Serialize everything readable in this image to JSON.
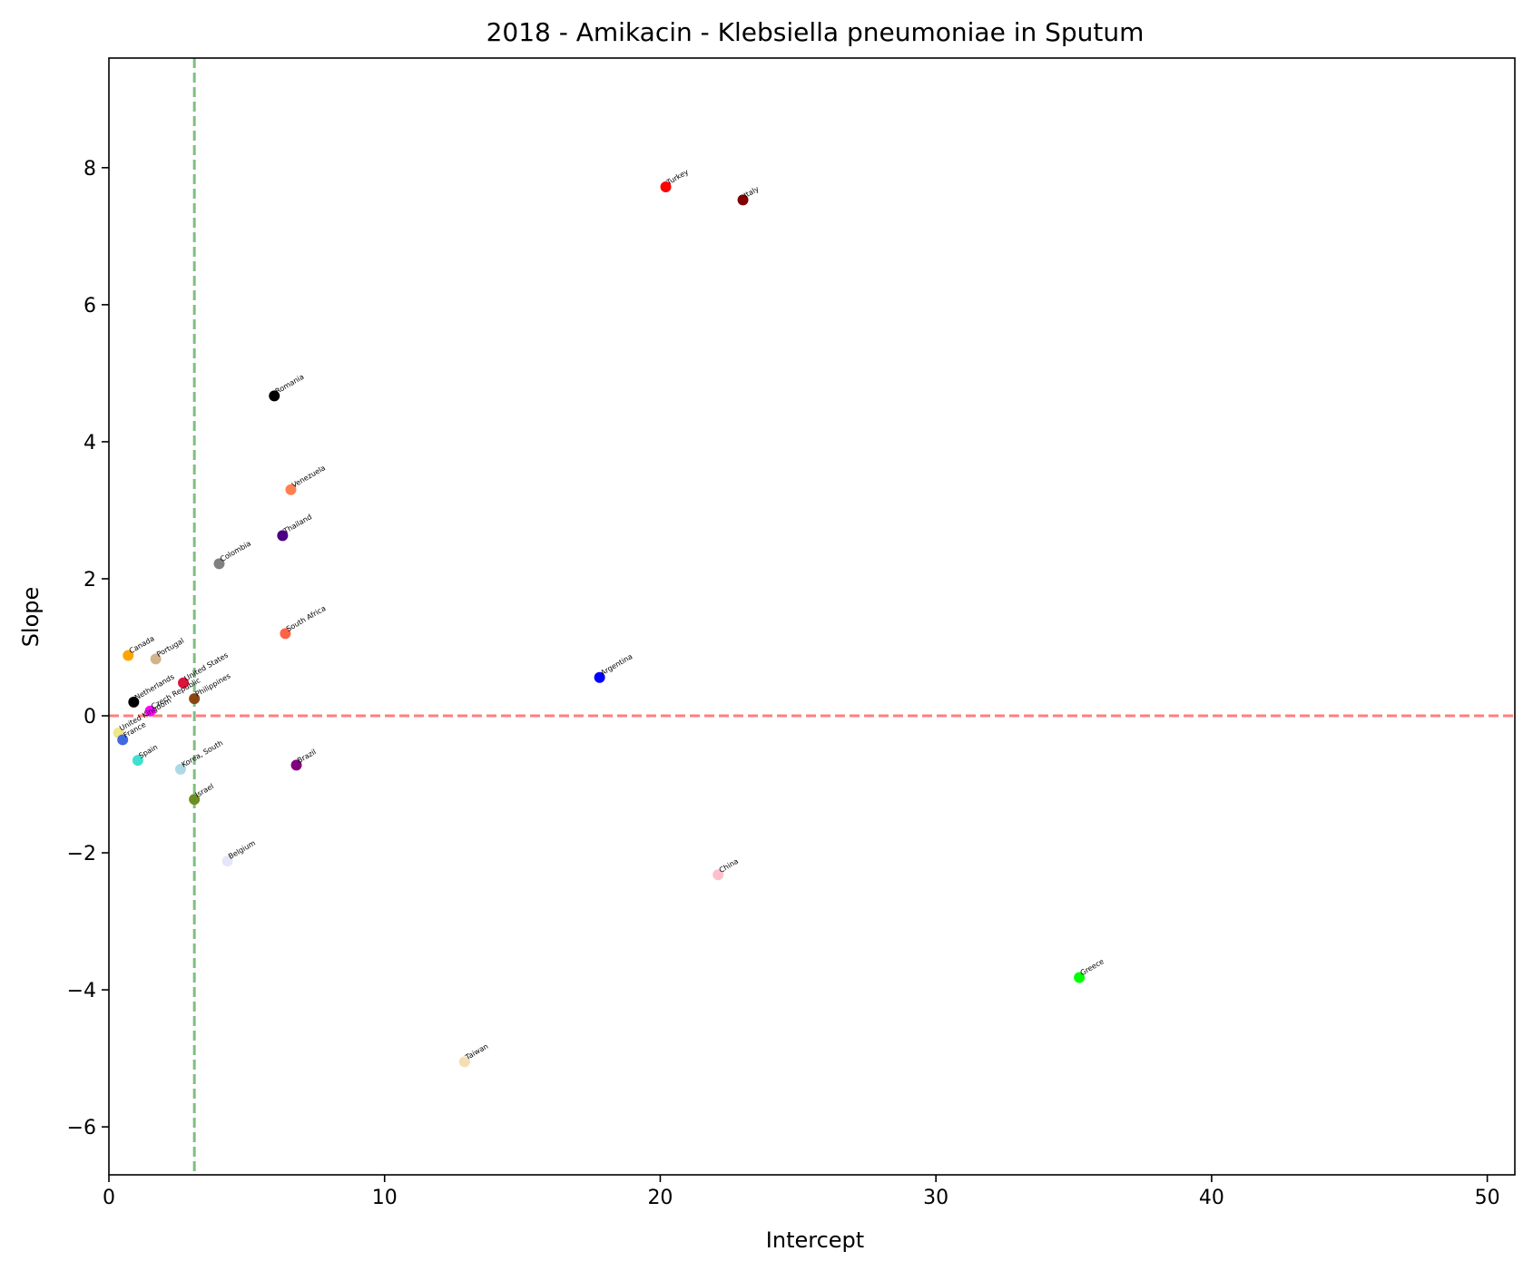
{
  "chart_data": {
    "type": "scatter",
    "title": "2018 - Amikacin - Klebsiella pneumoniae in Sputum",
    "xlabel": "Intercept",
    "ylabel": "Slope",
    "xlim": [
      0,
      51
    ],
    "ylim": [
      -6.7,
      9.6
    ],
    "xticks": [
      0,
      10,
      20,
      30,
      40,
      50
    ],
    "yticks": [
      -6,
      -4,
      -2,
      0,
      2,
      4,
      6,
      8
    ],
    "xtick_labels": [
      "0",
      "10",
      "20",
      "30",
      "40",
      "50"
    ],
    "ytick_labels": [
      "−6",
      "−4",
      "−2",
      "0",
      "2",
      "4",
      "6",
      "8"
    ],
    "grid": false,
    "reference_lines": [
      {
        "orientation": "horizontal",
        "value": 0,
        "color": "#ff0000",
        "style": "dashed",
        "opacity": 0.5
      },
      {
        "orientation": "vertical",
        "value": 3.1,
        "color": "#008000",
        "style": "dashed",
        "opacity": 0.5
      }
    ],
    "points": [
      {
        "label": "Turkey",
        "x": 20.2,
        "y": 7.72,
        "color": "#ff0000"
      },
      {
        "label": "Italy",
        "x": 23.0,
        "y": 7.53,
        "color": "#800000"
      },
      {
        "label": "Romania",
        "x": 6.0,
        "y": 4.67,
        "color": "#000000"
      },
      {
        "label": "Venezuela",
        "x": 6.6,
        "y": 3.3,
        "color": "#ff7f50"
      },
      {
        "label": "Thailand",
        "x": 6.3,
        "y": 2.63,
        "color": "#4b0082"
      },
      {
        "label": "Colombia",
        "x": 4.0,
        "y": 2.22,
        "color": "#808080"
      },
      {
        "label": "South Africa",
        "x": 6.4,
        "y": 1.2,
        "color": "#ff6347"
      },
      {
        "label": "Canada",
        "x": 0.7,
        "y": 0.88,
        "color": "#ffa500"
      },
      {
        "label": "Portugal",
        "x": 1.7,
        "y": 0.83,
        "color": "#d2b48c"
      },
      {
        "label": "United States",
        "x": 2.7,
        "y": 0.48,
        "color": "#dc143c"
      },
      {
        "label": "Philippines",
        "x": 3.1,
        "y": 0.25,
        "color": "#8b4513"
      },
      {
        "label": "Argentina",
        "x": 17.8,
        "y": 0.56,
        "color": "#0000ff"
      },
      {
        "label": "Czech Republic",
        "x": 1.5,
        "y": 0.07,
        "color": "#ff00ff"
      },
      {
        "label": "Netherlands",
        "x": 0.9,
        "y": 0.2,
        "color": "#000000"
      },
      {
        "label": "United Kingdom",
        "x": 0.35,
        "y": -0.25,
        "color": "#f0e68c"
      },
      {
        "label": "France",
        "x": 0.5,
        "y": -0.35,
        "color": "#4169e1"
      },
      {
        "label": "Spain",
        "x": 1.05,
        "y": -0.65,
        "color": "#40e0d0"
      },
      {
        "label": "Korea, South",
        "x": 2.6,
        "y": -0.78,
        "color": "#add8e6"
      },
      {
        "label": "Brazil",
        "x": 6.8,
        "y": -0.72,
        "color": "#800080"
      },
      {
        "label": "Israel",
        "x": 3.1,
        "y": -1.22,
        "color": "#6b8e23"
      },
      {
        "label": "Belgium",
        "x": 4.3,
        "y": -2.12,
        "color": "#e6e6fa"
      },
      {
        "label": "China",
        "x": 22.1,
        "y": -2.32,
        "color": "#ffc0cb"
      },
      {
        "label": "Greece",
        "x": 35.2,
        "y": -3.82,
        "color": "#00ff00"
      },
      {
        "label": "Taiwan",
        "x": 12.9,
        "y": -5.05,
        "color": "#f5deb3"
      }
    ]
  }
}
